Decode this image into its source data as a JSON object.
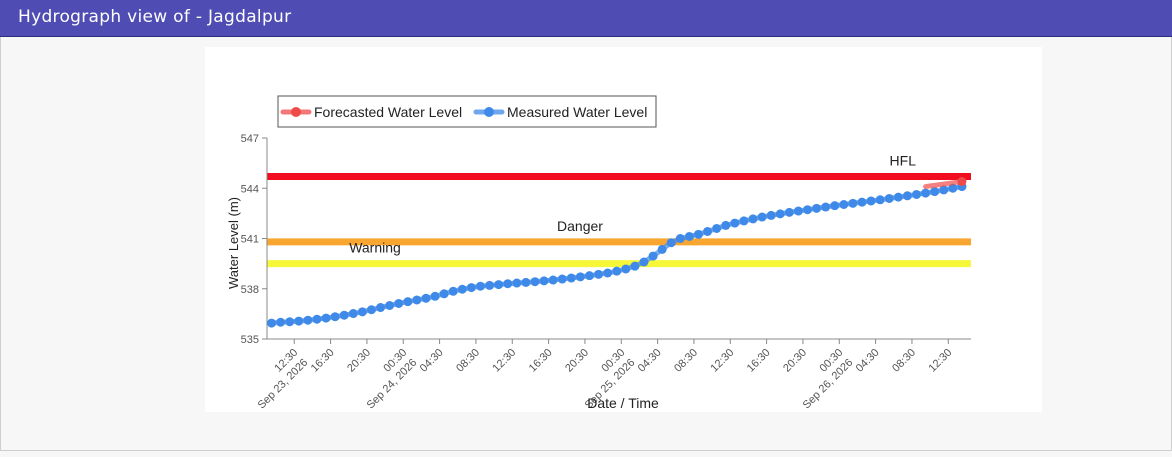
{
  "header": {
    "title": "Hydrograph view of - Jagdalpur"
  },
  "chart_data": {
    "type": "line",
    "xlabel": "Date / Time",
    "ylabel": "Water Level (m)",
    "ylim": [
      535,
      547
    ],
    "yticks": [
      535,
      538,
      541,
      544,
      547
    ],
    "xlim": [
      "2026-09-23 09:30",
      "2026-09-26 15:00"
    ],
    "xticks": [
      {
        "t": "2026-09-23 12:30",
        "time": "12:30",
        "date": "Sep 23, 2026"
      },
      {
        "t": "2026-09-23 16:30",
        "time": "16:30",
        "date": ""
      },
      {
        "t": "2026-09-23 20:30",
        "time": "20:30",
        "date": ""
      },
      {
        "t": "2026-09-24 00:30",
        "time": "00:30",
        "date": "Sep 24, 2026"
      },
      {
        "t": "2026-09-24 04:30",
        "time": "04:30",
        "date": ""
      },
      {
        "t": "2026-09-24 08:30",
        "time": "08:30",
        "date": ""
      },
      {
        "t": "2026-09-24 12:30",
        "time": "12:30",
        "date": ""
      },
      {
        "t": "2026-09-24 16:30",
        "time": "16:30",
        "date": ""
      },
      {
        "t": "2026-09-24 20:30",
        "time": "20:30",
        "date": ""
      },
      {
        "t": "2026-09-25 00:30",
        "time": "00:30",
        "date": "Sep 25, 2026"
      },
      {
        "t": "2026-09-25 04:30",
        "time": "04:30",
        "date": ""
      },
      {
        "t": "2026-09-25 08:30",
        "time": "08:30",
        "date": ""
      },
      {
        "t": "2026-09-25 12:30",
        "time": "12:30",
        "date": ""
      },
      {
        "t": "2026-09-25 16:30",
        "time": "16:30",
        "date": ""
      },
      {
        "t": "2026-09-25 20:30",
        "time": "20:30",
        "date": ""
      },
      {
        "t": "2026-09-26 00:30",
        "time": "00:30",
        "date": "Sep 26, 2026"
      },
      {
        "t": "2026-09-26 04:30",
        "time": "04:30",
        "date": ""
      },
      {
        "t": "2026-09-26 08:30",
        "time": "08:30",
        "date": ""
      },
      {
        "t": "2026-09-26 12:30",
        "time": "12:30",
        "date": ""
      }
    ],
    "legend": {
      "position": "top-left"
    },
    "thresholds": [
      {
        "label": "HFL",
        "value": 544.7,
        "color": "#f20c1f"
      },
      {
        "label": "Danger",
        "value": 540.8,
        "color": "#f9a630"
      },
      {
        "label": "Warning",
        "value": 539.5,
        "color": "#f7f73a"
      }
    ],
    "series": [
      {
        "name": "Measured Water Level",
        "color": "#3f8ae8",
        "start": "2026-09-23 10:00",
        "step_minutes": 60,
        "values": [
          535.95,
          536.0,
          536.03,
          536.07,
          536.12,
          536.18,
          536.25,
          536.33,
          536.42,
          536.52,
          536.62,
          536.75,
          536.88,
          537.0,
          537.12,
          537.23,
          537.33,
          537.43,
          537.55,
          537.7,
          537.85,
          537.97,
          538.07,
          538.15,
          538.2,
          538.25,
          538.3,
          538.34,
          538.38,
          538.42,
          538.47,
          538.52,
          538.58,
          538.64,
          538.71,
          538.78,
          538.86,
          538.94,
          539.05,
          539.18,
          539.35,
          539.6,
          539.95,
          540.35,
          540.75,
          541.0,
          541.12,
          541.25,
          541.42,
          541.6,
          541.78,
          541.92,
          542.05,
          542.17,
          542.28,
          542.38,
          542.47,
          542.56,
          542.64,
          542.72,
          542.8,
          542.88,
          542.96,
          543.03,
          543.1,
          543.17,
          543.24,
          543.31,
          543.39,
          543.47,
          543.55,
          543.63,
          543.71,
          543.8,
          543.9,
          544.0,
          544.1
        ]
      },
      {
        "name": "Forecasted Water Level",
        "color": "#ef4a4a",
        "x": [
          "2026-09-26 10:00",
          "2026-09-26 14:00"
        ],
        "values": [
          544.1,
          544.4
        ]
      }
    ]
  }
}
